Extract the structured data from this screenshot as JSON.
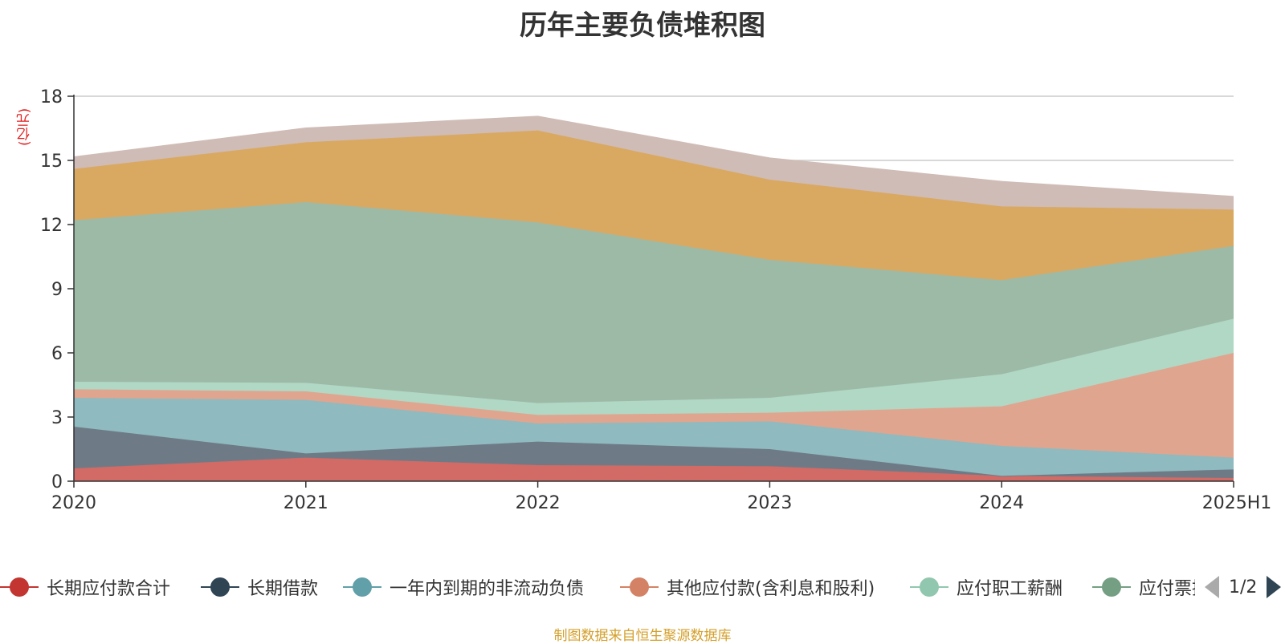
{
  "title": "历年主要负债堆积图",
  "unit": "(亿元)",
  "source_note": "制图数据来自恒生聚源数据库",
  "legend_pager": {
    "text": "1/2"
  },
  "chart_data": {
    "type": "area",
    "stacked": true,
    "title": "历年主要负债堆积图",
    "ylabel": "(亿元)",
    "xlabel": "",
    "ylim": [
      0,
      18
    ],
    "yticks": [
      "0",
      "3",
      "6",
      "9",
      "12",
      "15",
      "18"
    ],
    "categories": [
      "2020",
      "2021",
      "2022",
      "2023",
      "2024",
      "2025H1"
    ],
    "grid": true,
    "legend_placement": "bottom",
    "series": [
      {
        "name": "长期应付款合计",
        "color": "#c23531",
        "fill": "#d26a66",
        "values": [
          0.6,
          1.1,
          0.75,
          0.7,
          0.25,
          0.15
        ]
      },
      {
        "name": "长期借款",
        "color": "#2f4554",
        "fill": "#6e7b86",
        "values": [
          1.95,
          0.2,
          1.1,
          0.8,
          0.0,
          0.4
        ]
      },
      {
        "name": "一年内到期的非流动负债",
        "color": "#61a0a8",
        "fill": "#8fbabf",
        "values": [
          1.35,
          2.5,
          0.85,
          1.3,
          1.4,
          0.55
        ]
      },
      {
        "name": "其他应付款(含利息和股利)",
        "color": "#d48265",
        "fill": "#e0a58f",
        "values": [
          0.4,
          0.4,
          0.4,
          0.4,
          1.85,
          4.9
        ]
      },
      {
        "name": "应付职工薪酬",
        "color": "#91c7ae",
        "fill": "#b0d8c5",
        "values": [
          0.35,
          0.4,
          0.55,
          0.7,
          1.5,
          1.6
        ]
      },
      {
        "name": "应付票据",
        "color": "#749f83",
        "fill": "#9dbaa7",
        "values": [
          7.55,
          8.45,
          8.45,
          6.45,
          4.4,
          3.4
        ]
      },
      {
        "name": "",
        "color": "#ca8622",
        "fill": "#d9a962",
        "values": [
          2.4,
          2.8,
          4.3,
          3.75,
          3.45,
          1.7
        ]
      },
      {
        "name": "",
        "color": "#bda29a",
        "fill": "#d0bcb6",
        "values": [
          0.55,
          0.65,
          0.65,
          1.0,
          1.15,
          0.6
        ]
      }
    ]
  }
}
